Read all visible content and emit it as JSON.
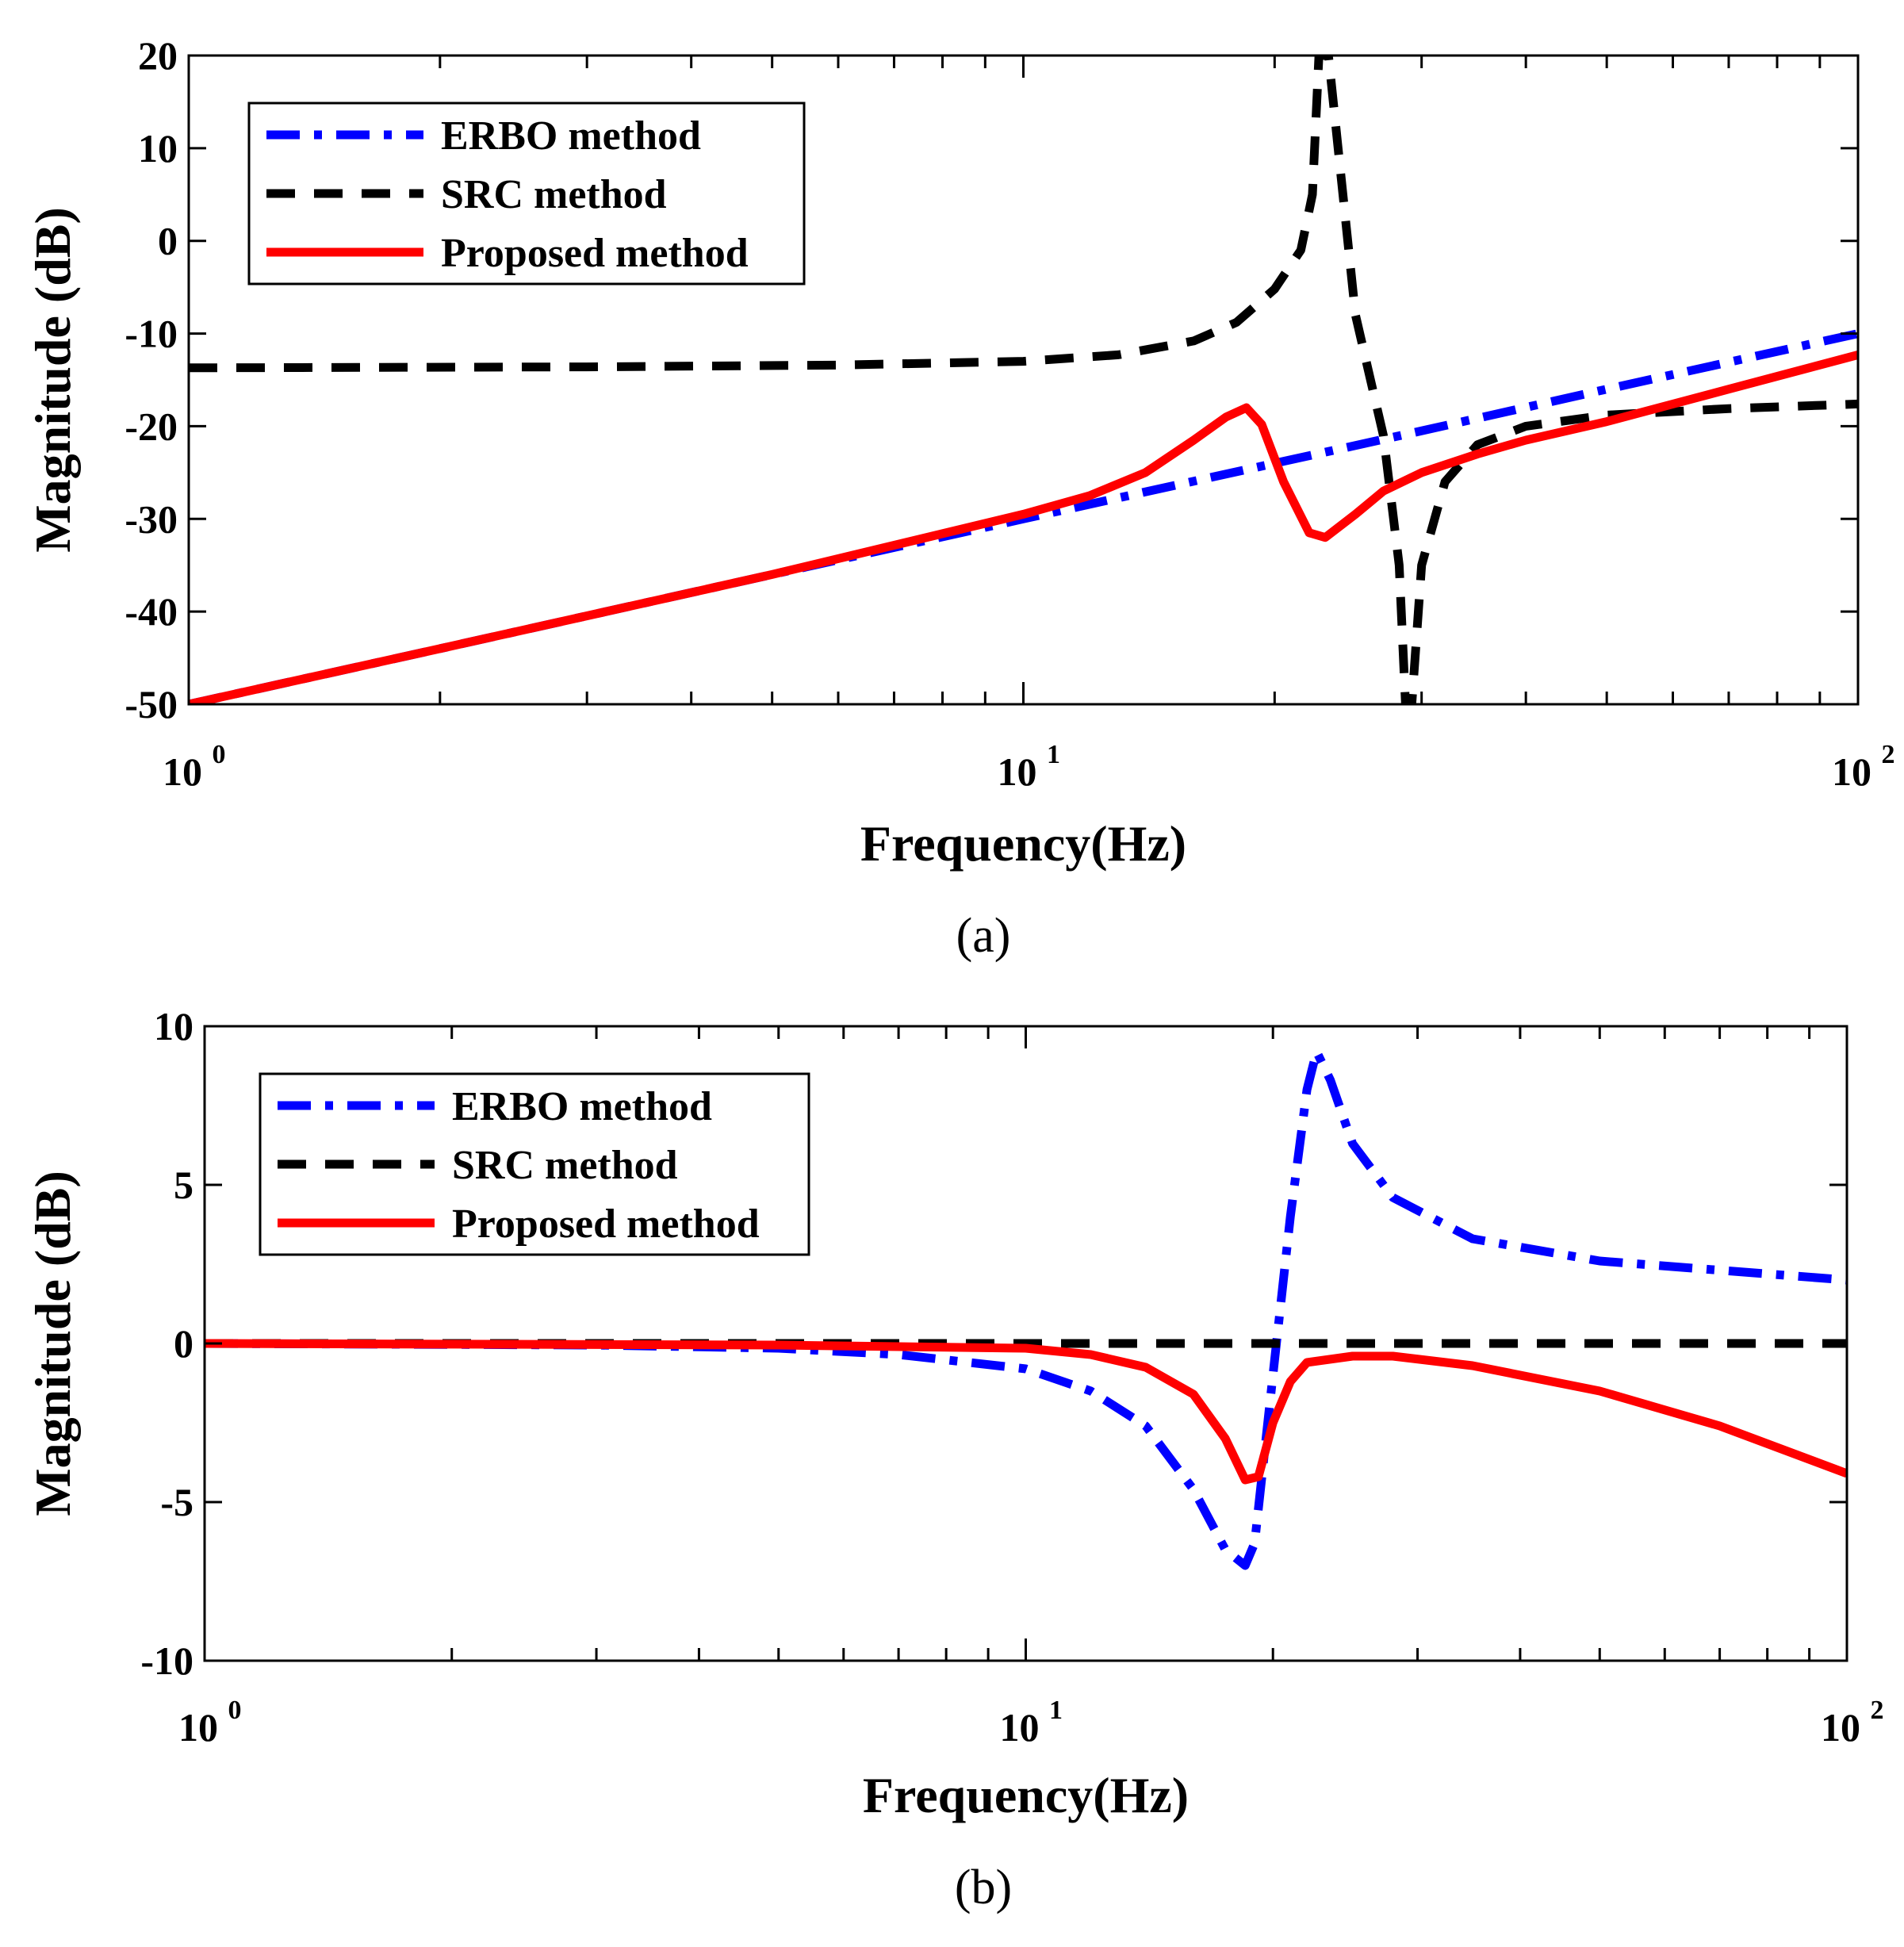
{
  "chart_data": [
    {
      "id": "a",
      "type": "line",
      "caption": "(a)",
      "xlabel": "Frequency(Hz)",
      "ylabel": "Magnitude (dB)",
      "xscale": "log",
      "xlim": [
        1,
        100
      ],
      "ylim": [
        -50,
        20
      ],
      "yticks": [
        20,
        10,
        0,
        -10,
        -20,
        -30,
        -40,
        -50
      ],
      "ytick_labels": [
        "20",
        "10",
        "0",
        "-10",
        "-20",
        "-30",
        "-40",
        "-50"
      ],
      "xticks": [
        {
          "base": "10",
          "exp": "0"
        },
        {
          "base": "10",
          "exp": "1"
        },
        {
          "base": "10",
          "exp": "2"
        }
      ],
      "legend_position": "top-left",
      "series": [
        {
          "name": "ERBO method",
          "color": "#0000ff",
          "style": "dashdot",
          "x": [
            1,
            2,
            5,
            10,
            20,
            30,
            50,
            100
          ],
          "y": [
            -50,
            -44,
            -36,
            -30,
            -24,
            -20.5,
            -16,
            -10
          ]
        },
        {
          "name": "SRC method",
          "color": "#000000",
          "style": "dashed",
          "x": [
            1,
            3,
            6,
            10,
            13,
            16,
            18,
            20,
            21.5,
            22.2,
            22.6,
            23.2,
            25,
            27,
            28.2,
            28.7,
            29.2,
            30,
            32,
            35,
            40,
            50,
            70,
            100
          ],
          "y": [
            -13.7,
            -13.6,
            -13.4,
            -13,
            -12.3,
            -10.8,
            -8.8,
            -5.2,
            -1,
            5,
            20,
            20,
            -8,
            -21,
            -35,
            -50,
            -50,
            -35,
            -26,
            -22,
            -20,
            -18.8,
            -18.1,
            -17.6
          ]
        },
        {
          "name": "Proposed method",
          "color": "#ff0000",
          "style": "solid",
          "x": [
            1,
            2,
            5,
            10,
            12,
            14,
            16,
            17.5,
            18.5,
            19.3,
            20.5,
            22,
            23,
            25,
            27,
            30,
            35,
            40,
            50,
            70,
            100
          ],
          "y": [
            -50,
            -44,
            -36,
            -29.5,
            -27.5,
            -25,
            -21.5,
            -19,
            -18,
            -19.8,
            -26,
            -31.5,
            -32,
            -29.5,
            -27,
            -25,
            -23,
            -21.5,
            -19.5,
            -16,
            -12.3
          ]
        }
      ]
    },
    {
      "id": "b",
      "type": "line",
      "caption": "(b)",
      "xlabel": "Frequency(Hz)",
      "ylabel": "Magnitude (dB)",
      "xscale": "log",
      "xlim": [
        1,
        100
      ],
      "ylim": [
        -10,
        10
      ],
      "yticks": [
        10,
        5,
        0,
        -5,
        -10
      ],
      "ytick_labels": [
        "10",
        "5",
        "0",
        "-5",
        "-10"
      ],
      "xticks": [
        {
          "base": "10",
          "exp": "0"
        },
        {
          "base": "10",
          "exp": "1"
        },
        {
          "base": "10",
          "exp": "2"
        }
      ],
      "legend_position": "top-left",
      "series": [
        {
          "name": "ERBO method",
          "color": "#0000ff",
          "style": "dashdot",
          "x": [
            1,
            3,
            5,
            7,
            10,
            12,
            14,
            16,
            17.5,
            18.5,
            19,
            20,
            21,
            22,
            22.6,
            23.5,
            25,
            28,
            35,
            50,
            100
          ],
          "y": [
            0,
            -0.05,
            -0.15,
            -0.35,
            -0.8,
            -1.5,
            -2.6,
            -4.6,
            -6.5,
            -7,
            -6.3,
            -1,
            4,
            8,
            9.2,
            8.3,
            6.3,
            4.6,
            3.3,
            2.6,
            2
          ]
        },
        {
          "name": "SRC method",
          "color": "#000000",
          "style": "dashed",
          "x": [
            1,
            100
          ],
          "y": [
            0,
            0
          ]
        },
        {
          "name": "Proposed method",
          "color": "#ff0000",
          "style": "solid",
          "x": [
            1,
            5,
            10,
            12,
            14,
            16,
            17.5,
            18.5,
            19.2,
            20,
            21,
            22,
            25,
            28,
            35,
            50,
            70,
            100
          ],
          "y": [
            0,
            -0.05,
            -0.15,
            -0.35,
            -0.75,
            -1.6,
            -3,
            -4.3,
            -4.2,
            -2.5,
            -1.2,
            -0.6,
            -0.4,
            -0.4,
            -0.7,
            -1.5,
            -2.6,
            -4.1
          ]
        }
      ]
    }
  ]
}
